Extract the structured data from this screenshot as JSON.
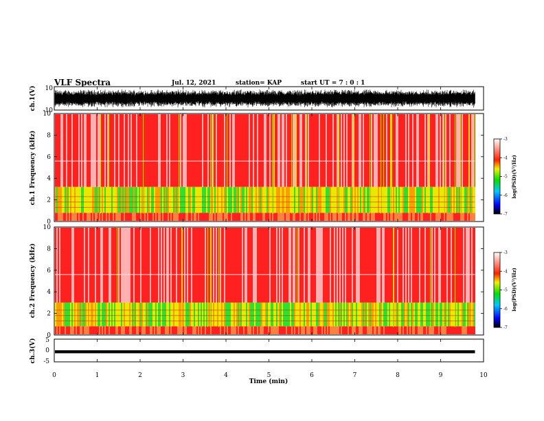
{
  "header": {
    "title": "VLF Spectra",
    "date": "Jul. 12, 2021",
    "station": "station= KAP",
    "start": "start UT =  7 : 0 : 1"
  },
  "chart_data": [
    {
      "type": "line",
      "panel": "channel-1-waveform",
      "ylabel": "ch.1(V)",
      "ylim": [
        -10,
        10
      ],
      "y_ticks": [
        "10",
        "-10"
      ],
      "xlim": [
        0,
        10
      ],
      "note_series": "dense noise signal spanning approx. -8 to 8 V from 0 to 9.8 min"
    },
    {
      "type": "heatmap",
      "panel": "channel-1-spectrogram",
      "ylabel": "ch.1 Frequency (kHz)",
      "ylim": [
        0,
        10
      ],
      "y_ticks": [
        "0",
        "2",
        "4",
        "6",
        "8",
        "10"
      ],
      "xlim": [
        0,
        10
      ],
      "data_end_min": 9.8,
      "bands": [
        {
          "freq_kHz": [
            0,
            0.8
          ],
          "level": -3.6
        },
        {
          "freq_kHz": [
            0.8,
            3.2
          ],
          "level": -4.7
        },
        {
          "freq_kHz": [
            3.2,
            10
          ],
          "level": -3.2
        }
      ],
      "colorbar": {
        "label": "log(PSD)(V²/Hz)",
        "range": [
          -7,
          -3
        ],
        "ticks": [
          "-3",
          "-4",
          "-5",
          "-6",
          "-7"
        ]
      }
    },
    {
      "type": "heatmap",
      "panel": "channel-2-spectrogram",
      "ylabel": "ch.2 Frequency (kHz)",
      "ylim": [
        0,
        10
      ],
      "y_ticks": [
        "0",
        "2",
        "4",
        "6",
        "8",
        "10"
      ],
      "xlim": [
        0,
        10
      ],
      "data_end_min": 9.8,
      "bands": [
        {
          "freq_kHz": [
            0,
            0.8
          ],
          "level": -3.6
        },
        {
          "freq_kHz": [
            0.8,
            3.0
          ],
          "level": -4.9
        },
        {
          "freq_kHz": [
            3.0,
            10
          ],
          "level": -3.2
        }
      ],
      "colorbar": {
        "label": "log(PSD)(V²/Hz)",
        "range": [
          -7,
          -3
        ],
        "ticks": [
          "-3",
          "-4",
          "-5",
          "-6",
          "-7"
        ]
      }
    },
    {
      "type": "line",
      "panel": "channel-3-waveform",
      "ylabel": "ch.3(V)",
      "ylim": [
        -5,
        5
      ],
      "y_ticks": [
        "5",
        "0",
        "-5"
      ],
      "xlim": [
        0,
        10
      ],
      "note_series": "narrow signal band approx. -1 to 0 V from 0 to 9.8 min"
    }
  ],
  "x_axis": {
    "label": "Time (min)",
    "ticks": [
      "0",
      "1",
      "2",
      "3",
      "4",
      "5",
      "6",
      "7",
      "8",
      "9",
      "10"
    ]
  },
  "colors": {
    "red": "#ff2020",
    "yellow": "#e8e800",
    "green": "#30e030",
    "blue": "#0000ff",
    "black": "#000000"
  }
}
